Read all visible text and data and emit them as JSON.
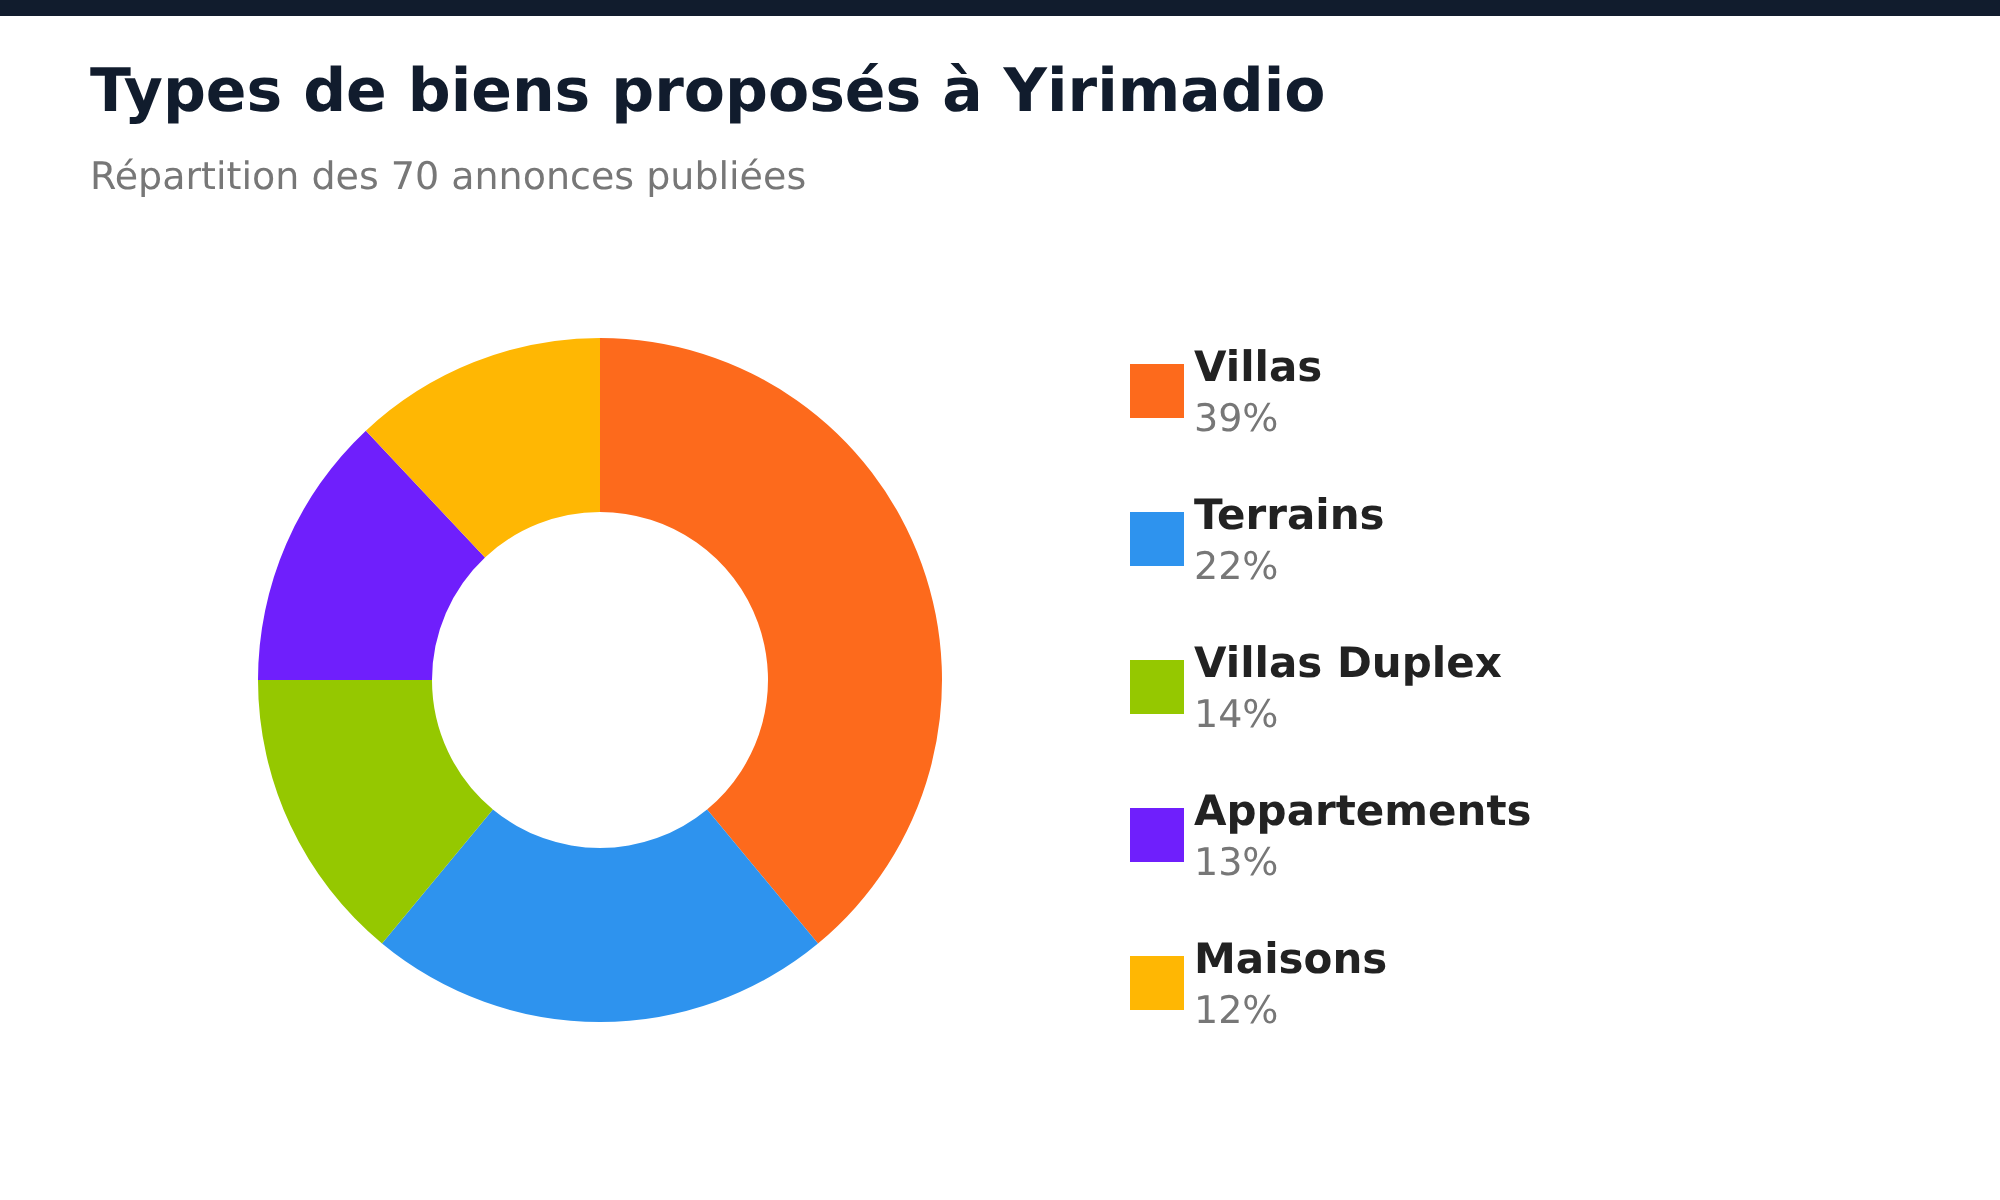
{
  "chart_data": {
    "type": "donut",
    "title": "Types de biens proposés à Yirimadio",
    "subtitle": "Répartition des 70 annonces publiées",
    "categories": [
      "Villas",
      "Terrains",
      "Villas Duplex",
      "Appartements",
      "Maisons"
    ],
    "values": [
      39,
      22,
      14,
      13,
      12
    ],
    "value_labels": [
      "39%",
      "22%",
      "14%",
      "13%",
      "12%"
    ],
    "colors": [
      "#fd6a1c",
      "#2e93ee",
      "#95c800",
      "#6f1ffc",
      "#ffb703"
    ],
    "legend": "right"
  }
}
